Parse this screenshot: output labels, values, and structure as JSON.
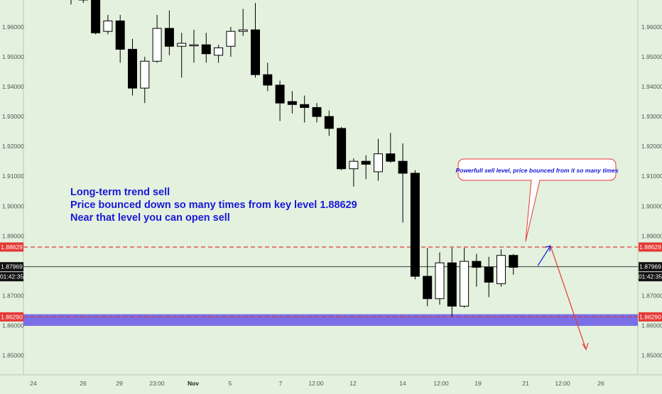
{
  "chart_data": {
    "type": "candlestick",
    "price_axis": {
      "ylim": [
        1.8435,
        1.969
      ],
      "ticks": [
        "1.96000",
        "1.95000",
        "1.94000",
        "1.93000",
        "1.92000",
        "1.91000",
        "1.90000",
        "1.89000",
        "1.88000",
        "1.87000",
        "1.86000",
        "1.85000"
      ]
    },
    "time_axis": {
      "ticks": [
        "24",
        "26",
        "29",
        "23:00",
        "Nov",
        "5",
        "7",
        "12:00",
        "12",
        "14",
        "12:00",
        "19",
        "21",
        "12:00",
        "26"
      ]
    },
    "candles": [
      {
        "o": 1.976,
        "h": 1.978,
        "l": 1.9675,
        "c": 1.97
      },
      {
        "o": 1.97,
        "h": 1.975,
        "l": 1.968,
        "c": 1.969
      },
      {
        "o": 1.97,
        "h": 1.972,
        "l": 1.9575,
        "c": 1.958
      },
      {
        "o": 1.9585,
        "h": 1.964,
        "l": 1.9575,
        "c": 1.962
      },
      {
        "o": 1.962,
        "h": 1.964,
        "l": 1.948,
        "c": 1.9525
      },
      {
        "o": 1.9525,
        "h": 1.956,
        "l": 1.937,
        "c": 1.9395
      },
      {
        "o": 1.9395,
        "h": 1.95,
        "l": 1.9345,
        "c": 1.9485
      },
      {
        "o": 1.9485,
        "h": 1.964,
        "l": 1.948,
        "c": 1.9595
      },
      {
        "o": 1.9595,
        "h": 1.9655,
        "l": 1.9505,
        "c": 1.9535
      },
      {
        "o": 1.9535,
        "h": 1.958,
        "l": 1.943,
        "c": 1.9545
      },
      {
        "o": 1.954,
        "h": 1.959,
        "l": 1.948,
        "c": 1.954
      },
      {
        "o": 1.954,
        "h": 1.958,
        "l": 1.948,
        "c": 1.951
      },
      {
        "o": 1.9505,
        "h": 1.954,
        "l": 1.948,
        "c": 1.953
      },
      {
        "o": 1.9535,
        "h": 1.96,
        "l": 1.95,
        "c": 1.9585
      },
      {
        "o": 1.9585,
        "h": 1.966,
        "l": 1.957,
        "c": 1.959
      },
      {
        "o": 1.959,
        "h": 1.968,
        "l": 1.943,
        "c": 1.944
      },
      {
        "o": 1.944,
        "h": 1.948,
        "l": 1.9385,
        "c": 1.9405
      },
      {
        "o": 1.9405,
        "h": 1.942,
        "l": 1.9285,
        "c": 1.9345
      },
      {
        "o": 1.935,
        "h": 1.9385,
        "l": 1.931,
        "c": 1.934
      },
      {
        "o": 1.934,
        "h": 1.937,
        "l": 1.928,
        "c": 1.933
      },
      {
        "o": 1.933,
        "h": 1.9345,
        "l": 1.928,
        "c": 1.93
      },
      {
        "o": 1.93,
        "h": 1.932,
        "l": 1.9235,
        "c": 1.926
      },
      {
        "o": 1.926,
        "h": 1.9265,
        "l": 1.912,
        "c": 1.9125
      },
      {
        "o": 1.9125,
        "h": 1.916,
        "l": 1.9065,
        "c": 1.915
      },
      {
        "o": 1.915,
        "h": 1.917,
        "l": 1.909,
        "c": 1.914
      },
      {
        "o": 1.9115,
        "h": 1.9225,
        "l": 1.9085,
        "c": 1.9175
      },
      {
        "o": 1.9175,
        "h": 1.9245,
        "l": 1.9145,
        "c": 1.915
      },
      {
        "o": 1.915,
        "h": 1.921,
        "l": 1.8945,
        "c": 1.911
      },
      {
        "o": 1.911,
        "h": 1.912,
        "l": 1.8755,
        "c": 1.8765
      },
      {
        "o": 1.8765,
        "h": 1.886,
        "l": 1.8665,
        "c": 1.869
      },
      {
        "o": 1.869,
        "h": 1.8845,
        "l": 1.867,
        "c": 1.881
      },
      {
        "o": 1.881,
        "h": 1.886,
        "l": 1.863,
        "c": 1.8665
      },
      {
        "o": 1.8665,
        "h": 1.886,
        "l": 1.866,
        "c": 1.8815
      },
      {
        "o": 1.8815,
        "h": 1.884,
        "l": 1.873,
        "c": 1.8795
      },
      {
        "o": 1.8795,
        "h": 1.883,
        "l": 1.8695,
        "c": 1.8745
      },
      {
        "o": 1.874,
        "h": 1.8855,
        "l": 1.873,
        "c": 1.8835
      },
      {
        "o": 1.8835,
        "h": 1.884,
        "l": 1.877,
        "c": 1.8795
      }
    ],
    "levels": [
      {
        "value": 1.88629,
        "label": "1.88629",
        "color": "#e53935",
        "style": "dashed"
      },
      {
        "value": 1.87969,
        "label": "1.87969",
        "color": "#000000",
        "style": "solid"
      },
      {
        "value": 1.8629,
        "label": "1.86290",
        "color": "#e53935",
        "style": "dashed"
      }
    ],
    "zone": {
      "from": 1.8599,
      "to": 1.8638,
      "color": "#6f60e8"
    },
    "countdown": "01:42:35",
    "annotations": {
      "main_note": [
        "Long-term trend sell",
        "Price bounced down so many times from key level 1.88629",
        "Near that level you can open sell"
      ],
      "callout": "Powerfull sell level, price bounced from it so many times"
    },
    "projection": {
      "blue": [
        [
          1.88,
          1.8867
        ]
      ],
      "red": [
        1.8867,
        1.852
      ]
    }
  },
  "colors": {
    "background": "#e3f1de",
    "bull_body": "#ffffff",
    "bear_body": "#000000",
    "note_text": "#1818d8",
    "level_red": "#e53935",
    "zone": "#6f60e8"
  }
}
